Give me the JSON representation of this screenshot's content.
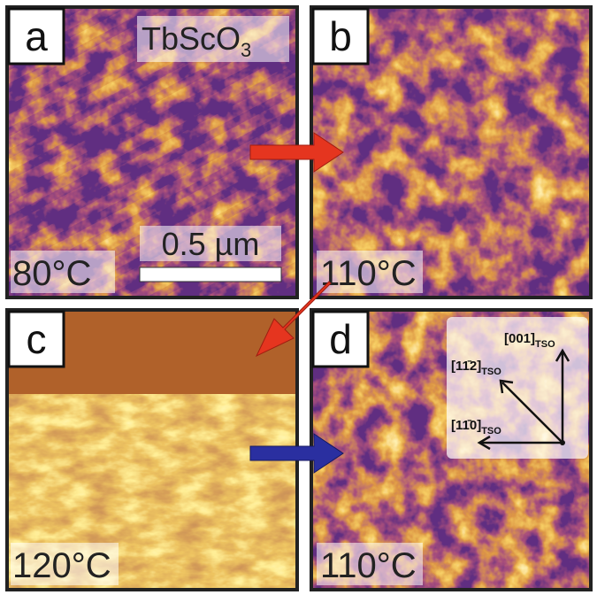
{
  "panels": [
    {
      "label": "a",
      "temperature": "80°C"
    },
    {
      "label": "b",
      "temperature": "110°C"
    },
    {
      "label": "c",
      "temperature": "120°C"
    },
    {
      "label": "d",
      "temperature": "110°C"
    }
  ],
  "material": {
    "formula": "TbScO",
    "subscript": "3"
  },
  "scale_bar": "0.5 µm",
  "directions": [
    {
      "index": "[001]",
      "subscript": "TSO"
    },
    {
      "index": "[11̄2]",
      "subscript": "TSO"
    },
    {
      "index": "[11̄0]",
      "subscript": "TSO"
    }
  ]
}
